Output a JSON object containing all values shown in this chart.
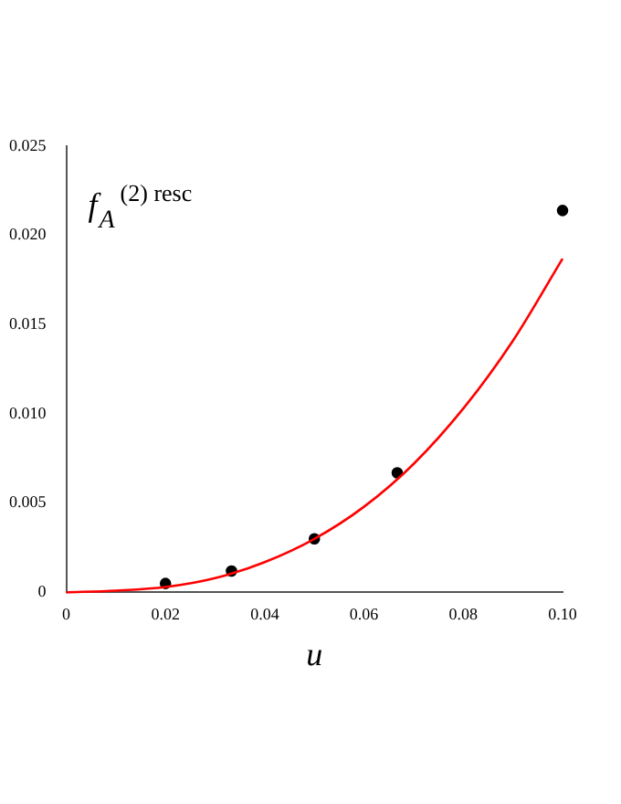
{
  "chart_data": {
    "type": "scatter",
    "xlabel": "u",
    "ylabel": "f$_{A}$$^{(2) resc}$",
    "xlim": [
      0,
      0.1
    ],
    "ylim": [
      0,
      0.025
    ],
    "xticks": [
      0,
      0.02,
      0.04,
      0.06,
      0.08,
      {
        "value": 0.1,
        "label": "0.10"
      }
    ],
    "yticks": [
      0,
      0.005,
      {
        "value": 0.01,
        "label": "0.010"
      },
      0.015,
      {
        "value": 0.02,
        "label": "0.020"
      },
      0.025
    ],
    "grid": false,
    "legend": false,
    "series": [
      {
        "type": "line",
        "color": "#ff0000",
        "marker": "none",
        "x": [
          0,
          0.01,
          0.02,
          0.03,
          0.04,
          0.05,
          0.06,
          0.07,
          0.08,
          0.09,
          0.1
        ],
        "values": [
          0,
          0.0001,
          0.0003,
          0.0008,
          0.0017,
          0.003,
          0.0048,
          0.0072,
          0.0103,
          0.0141,
          0.0187
        ]
      },
      {
        "type": "scatter",
        "color": "#000000",
        "marker": "circle",
        "x": [
          0.02,
          0.0333,
          0.05,
          0.0667,
          0.1
        ],
        "values": [
          0.0005,
          0.0012,
          0.003,
          0.0067,
          0.0214
        ]
      }
    ]
  }
}
